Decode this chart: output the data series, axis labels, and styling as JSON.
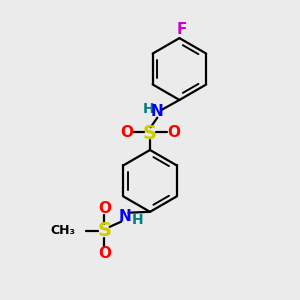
{
  "background_color": "#ebebeb",
  "bond_color": "#000000",
  "S_color": "#cccc00",
  "O_color": "#ff0000",
  "N_color": "#0000ff",
  "F_color": "#cc00cc",
  "H_color": "#008080",
  "figsize": [
    3.0,
    3.0
  ],
  "dpi": 100,
  "xlim": [
    0,
    10
  ],
  "ylim": [
    0,
    10
  ]
}
